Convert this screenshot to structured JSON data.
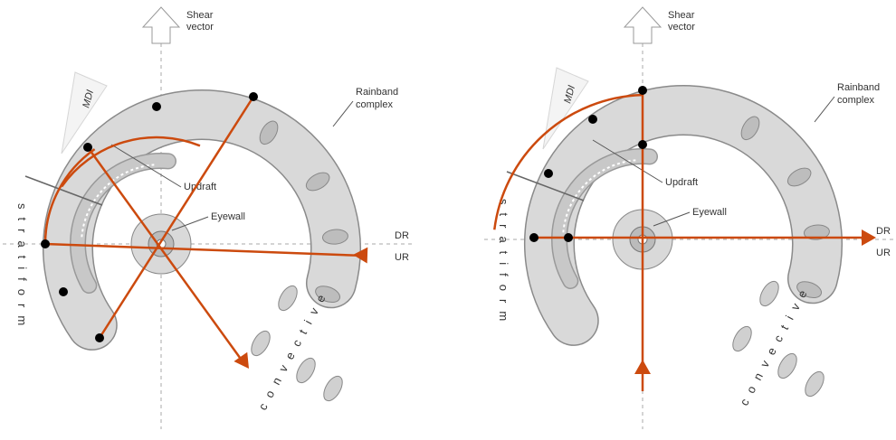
{
  "panels": [
    {
      "labels": {
        "shear_1": "Shear",
        "shear_2": "vector",
        "mdi": "MDI",
        "rainband_1": "Rainband",
        "rainband_2": "complex",
        "updraft": "Updraft",
        "eyewall": "Eyewall",
        "dr": "DR",
        "ur": "UR",
        "stratiform": "stratiform",
        "convective": "convective"
      }
    },
    {
      "labels": {
        "shear_1": "Shear",
        "shear_2": "vector",
        "mdi": "MDI",
        "rainband_1": "Rainband",
        "rainband_2": "complex",
        "updraft": "Updraft",
        "eyewall": "Eyewall",
        "dr": "DR",
        "ur": "UR",
        "stratiform": "stratiform",
        "convective": "convective"
      }
    }
  ]
}
